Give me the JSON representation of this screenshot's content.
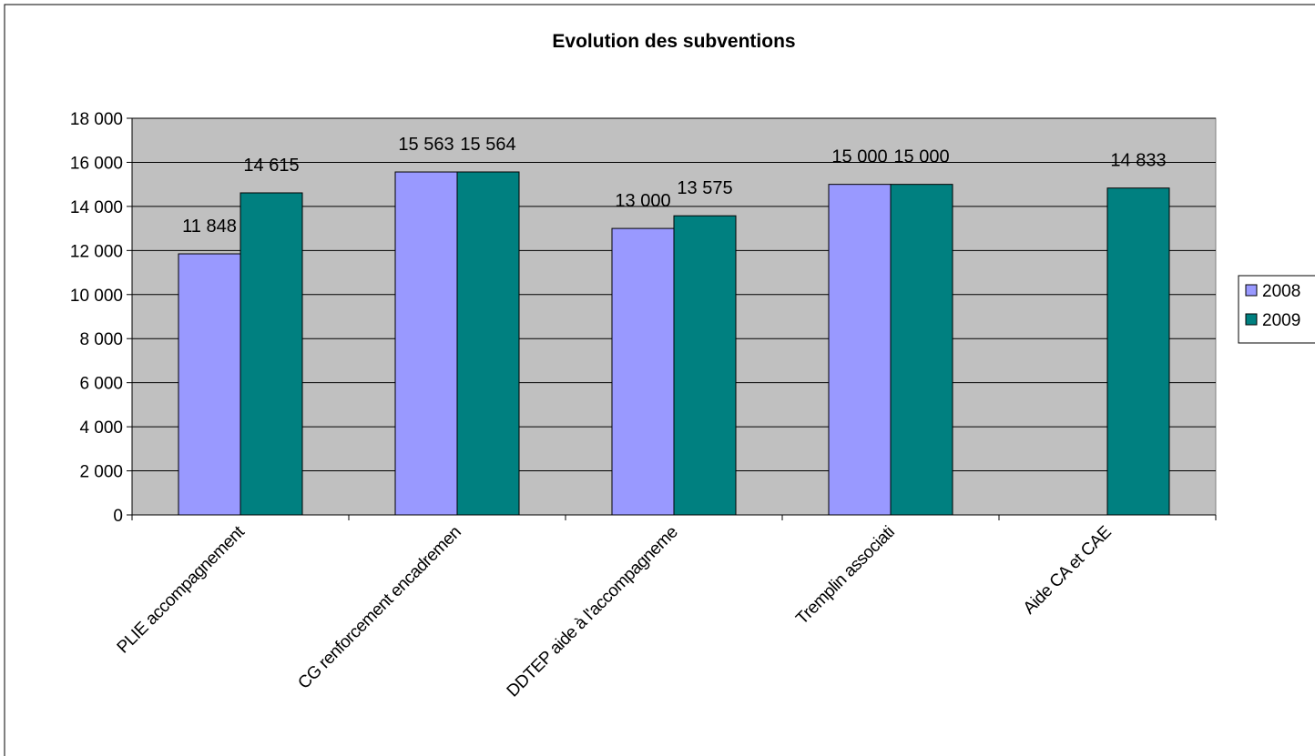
{
  "chart_data": {
    "type": "bar",
    "title": "Evolution des subventions",
    "xlabel": "",
    "ylabel": "",
    "ylim": [
      0,
      18000
    ],
    "yticks": [
      0,
      2000,
      4000,
      6000,
      8000,
      10000,
      12000,
      14000,
      16000,
      18000
    ],
    "ytick_labels": [
      "0",
      "2 000",
      "4 000",
      "6 000",
      "8 000",
      "10 000",
      "12 000",
      "14 000",
      "16 000",
      "18 000"
    ],
    "grid": true,
    "legend_position": "right",
    "categories": [
      "PLIE accompagnement",
      "CG renforcement  encadremen",
      "DDTEP aide à l'accompagneme",
      "Tremplin associati",
      "Aide CA et CAE"
    ],
    "series": [
      {
        "name": "2008",
        "color": "#9999FF",
        "values": [
          11848,
          15563,
          13000,
          15000,
          null
        ],
        "labels": [
          "11 848",
          "15 563",
          "13 000",
          "15 000",
          ""
        ]
      },
      {
        "name": "2009",
        "color": "#008080",
        "values": [
          14615,
          15564,
          13575,
          15000,
          14833
        ],
        "labels": [
          "14 615",
          "15 564",
          "13 575",
          "15 000",
          "14 833"
        ]
      }
    ],
    "plot_background": "#C0C0C0"
  }
}
